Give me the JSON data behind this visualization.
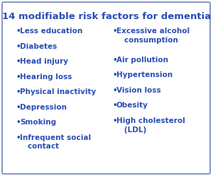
{
  "title": "14 modifiable risk factors for dementia",
  "title_color": "#2a4db5",
  "title_fontsize": 9.5,
  "background_color": "#ffffff",
  "border_color": "#8899cc",
  "text_color": "#2a4db5",
  "bullet": "•",
  "left_items": [
    "Less education",
    "Diabetes",
    "Head injury",
    "Hearing loss",
    "Physical inactivity",
    "Depression",
    "Smoking",
    "Infrequent social\n   contact"
  ],
  "right_items": [
    "Excessive alcohol\n   consumption",
    "Air pollution",
    "Hypertension",
    "Vision loss",
    "Obesity",
    "High cholesterol\n   (LDL)"
  ],
  "item_fontsize": 7.5,
  "figsize": [
    3.0,
    2.49
  ],
  "dpi": 100
}
